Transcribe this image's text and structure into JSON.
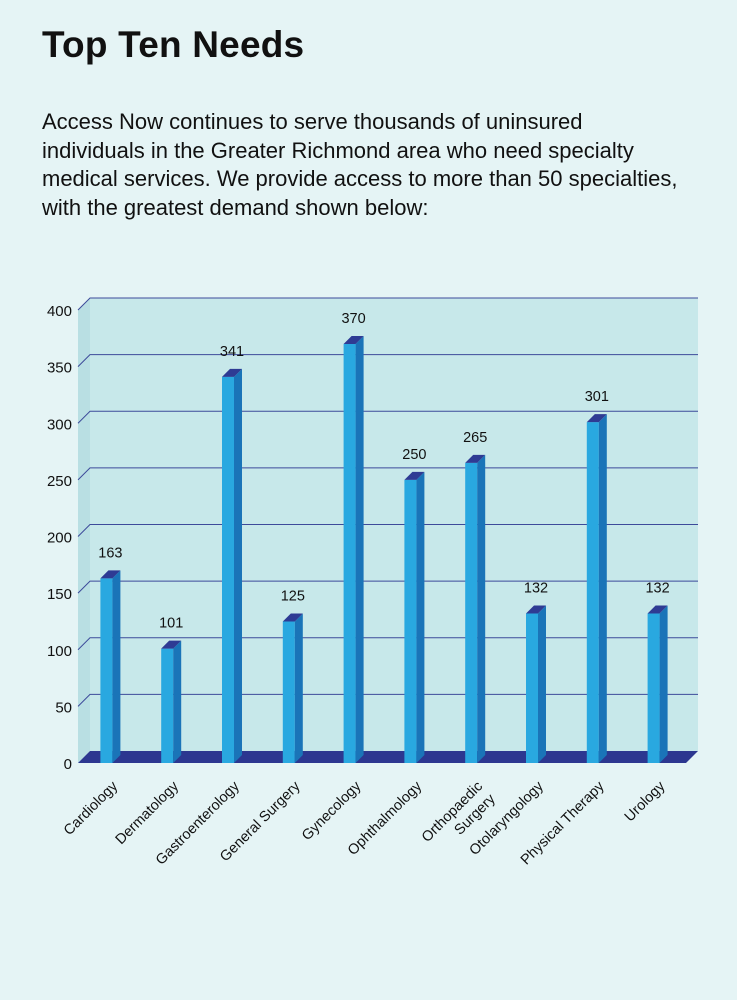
{
  "header": {
    "title": "Top Ten Needs",
    "intro": "Access Now continues to serve thousands of uninsured individuals in the Greater Richmond area who need specialty medical services. We provide access to more than 50 specialties, with the greatest demand shown below:"
  },
  "colors": {
    "background": "#e5f4f5",
    "plot_area": "#c7e8ea",
    "bar_front": "#29a8e0",
    "bar_side": "#1a74b8",
    "bar_top": "#2e3b94",
    "floor": "#2c3790",
    "gridline": "#3d4a9a"
  },
  "chart_data": {
    "type": "bar",
    "title": "",
    "xlabel": "",
    "ylabel": "",
    "categories": [
      "Cardiology",
      "Dermatology",
      "Gastroenterology",
      "General Surgery",
      "Gynecology",
      "Ophthalmology",
      "Orthopaedic Surgery",
      "Otolaryngology",
      "Physical Therapy",
      "Urology"
    ],
    "category_lines": [
      [
        "Cardiology"
      ],
      [
        "Dermatology"
      ],
      [
        "Gastroenterology"
      ],
      [
        "General Surgery"
      ],
      [
        "Gynecology"
      ],
      [
        "Ophthalmology"
      ],
      [
        "Orthopaedic",
        "Surgery"
      ],
      [
        "Otolaryngology"
      ],
      [
        "Physical Therapy"
      ],
      [
        "Urology"
      ]
    ],
    "values": [
      163,
      101,
      341,
      125,
      370,
      250,
      265,
      132,
      301,
      132
    ],
    "value_labels": [
      "163",
      "101",
      "341",
      "125",
      "370",
      "250",
      "265",
      "132",
      "301",
      "132"
    ],
    "yticks": [
      0,
      50,
      100,
      150,
      200,
      250,
      300,
      350,
      400
    ],
    "ylim": [
      0,
      400
    ],
    "grid": true,
    "legend": "none",
    "style": "3d"
  }
}
